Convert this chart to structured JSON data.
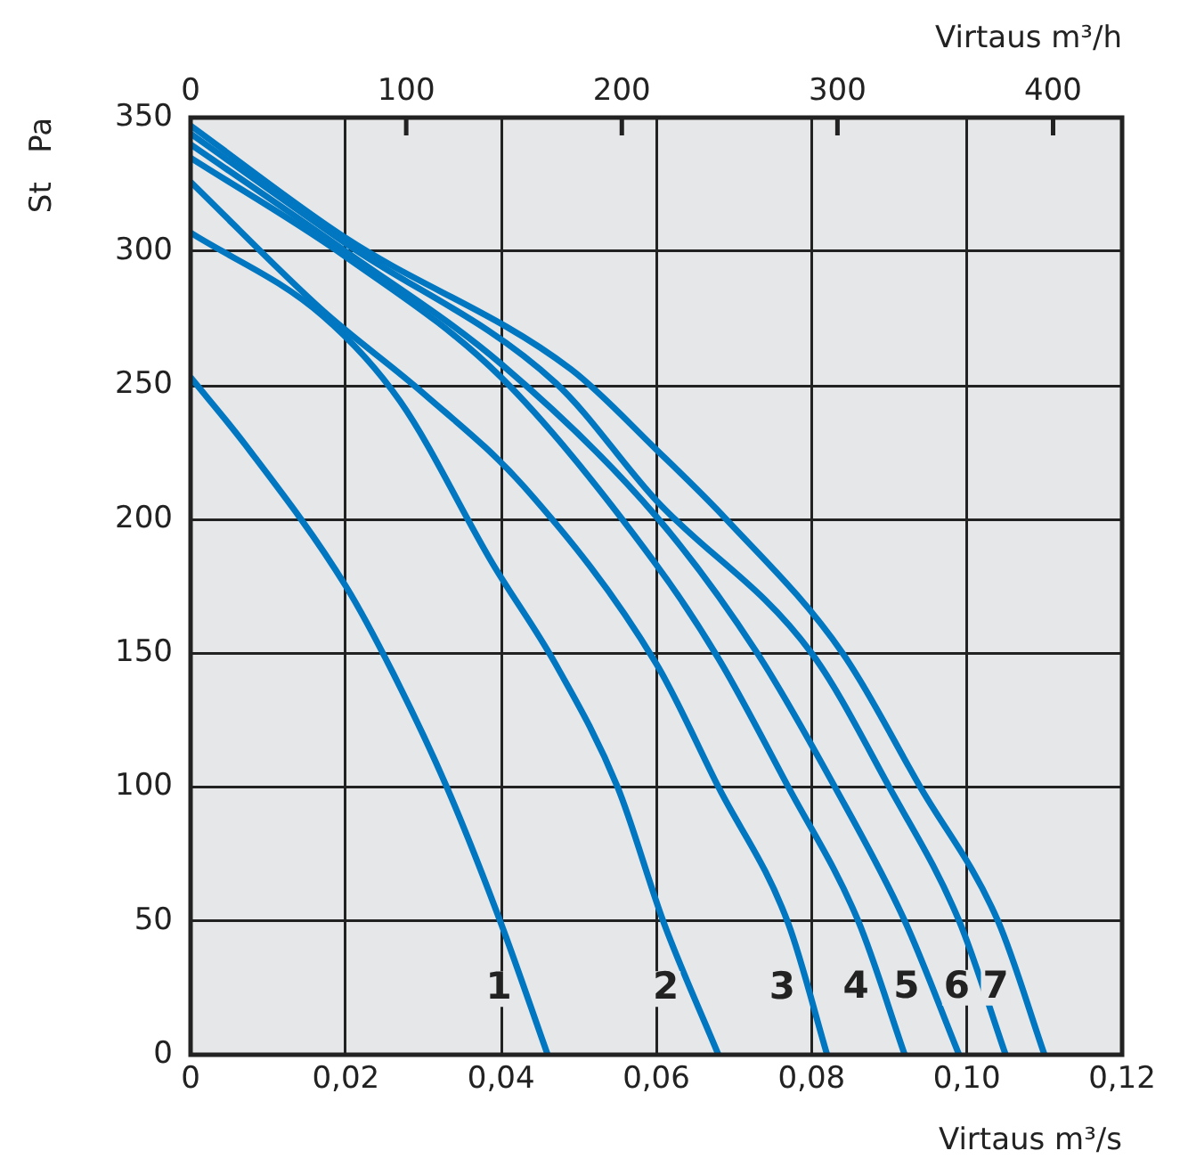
{
  "chart_data": {
    "type": "line",
    "xlabel": "Virtaus m³/s",
    "x2label": "Virtaus m³/h",
    "ylabel": "St   Pa",
    "xlim": [
      0,
      0.12
    ],
    "xticks": [
      0,
      {
        "value": 0.02,
        "label": "0,02"
      },
      {
        "value": 0.04,
        "label": "0,04"
      },
      {
        "value": 0.06,
        "label": "0,06"
      },
      {
        "value": 0.08,
        "label": "0,08"
      },
      {
        "value": 0.1,
        "label": "0,10"
      },
      {
        "value": 0.12,
        "label": "0,12"
      }
    ],
    "x2lim": [
      0,
      432
    ],
    "x2ticks": [
      0,
      100,
      200,
      300,
      400
    ],
    "ylim": [
      0,
      350
    ],
    "yticks": [
      0,
      50,
      100,
      150,
      200,
      250,
      300,
      350
    ],
    "grid": true,
    "legend": false,
    "marker": "none",
    "line_style": "solid",
    "series": [
      {
        "name": "1",
        "color": "#0077c0",
        "x": [
          0,
          0.007,
          0.02,
          0.026,
          0.033,
          0.04,
          0.046
        ],
        "values": [
          253,
          228,
          175,
          143,
          100,
          49,
          0
        ]
      },
      {
        "name": "2",
        "color": "#0077c0",
        "x": [
          0,
          0.017,
          0.027,
          0.039,
          0.047,
          0.055,
          0.061,
          0.068
        ],
        "values": [
          307,
          276,
          244,
          183,
          146,
          100,
          49,
          0
        ]
      },
      {
        "name": "3",
        "color": "#0077c0",
        "x": [
          0,
          0.017,
          0.03,
          0.043,
          0.06,
          0.068,
          0.077,
          0.082
        ],
        "values": [
          326,
          278,
          247,
          212,
          146,
          100,
          49,
          0
        ]
      },
      {
        "name": "4",
        "color": "#0077c0",
        "x": [
          0,
          0.02,
          0.04,
          0.06,
          0.068,
          0.077,
          0.086,
          0.092
        ],
        "values": [
          335,
          298,
          253,
          183,
          148,
          100,
          50,
          0
        ]
      },
      {
        "name": "5",
        "color": "#0077c0",
        "x": [
          0,
          0.02,
          0.04,
          0.06,
          0.073,
          0.083,
          0.092,
          0.099
        ],
        "values": [
          340,
          300,
          258,
          201,
          150,
          100,
          50,
          0
        ]
      },
      {
        "name": "6",
        "color": "#0077c0",
        "x": [
          0,
          0.02,
          0.047,
          0.06,
          0.08,
          0.09,
          0.099,
          0.105
        ],
        "values": [
          344,
          303,
          251,
          207,
          150,
          100,
          50,
          0
        ]
      },
      {
        "name": "7",
        "color": "#0077c0",
        "x": [
          0,
          0.02,
          0.049,
          0.06,
          0.069,
          0.084,
          0.094,
          0.104,
          0.11
        ],
        "values": [
          347,
          305,
          256,
          226,
          200,
          150,
          100,
          50,
          0
        ]
      }
    ]
  }
}
